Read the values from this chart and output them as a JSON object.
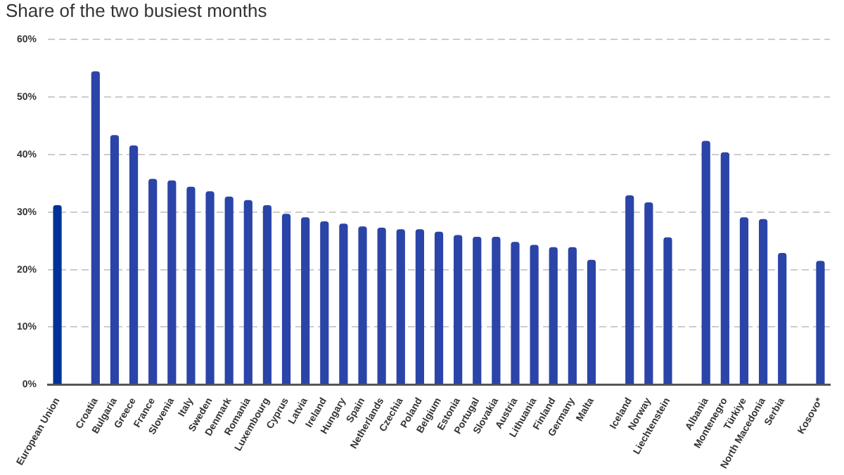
{
  "chart_data": {
    "type": "bar",
    "title": "Share of the two busiest months",
    "categories": [
      "European Union",
      null,
      "Croatia",
      "Bulgaria",
      "Greece",
      "France",
      "Slovenia",
      "Italy",
      "Sweden",
      "Denmark",
      "Romania",
      "Luxembourg",
      "Cyprus",
      "Latvia",
      "Ireland",
      "Hungary",
      "Spain",
      "Netherlands",
      "Czechia",
      "Poland",
      "Belgium",
      "Estonia",
      "Portugal",
      "Slovakia",
      "Austria",
      "Lithuania",
      "Finland",
      "Germany",
      "Malta",
      null,
      "Iceland",
      "Norway",
      "Liechtenstein",
      null,
      "Albania",
      "Montenegro",
      "Türkiye",
      "North Macedonia",
      "Serbia",
      null,
      "Kosovo*"
    ],
    "values": [
      31.2,
      null,
      54.5,
      43.4,
      41.6,
      35.8,
      35.5,
      34.4,
      33.6,
      32.7,
      32.1,
      31.2,
      29.7,
      29.1,
      28.4,
      28.0,
      27.5,
      27.3,
      27.0,
      27.0,
      26.6,
      26.0,
      25.7,
      25.7,
      24.8,
      24.3,
      23.9,
      23.9,
      21.7,
      null,
      32.9,
      31.7,
      25.6,
      null,
      42.4,
      40.4,
      29.1,
      28.8,
      22.9,
      null,
      21.5
    ],
    "colors": [
      "#003399",
      "#2a44a8",
      "#2a44a8",
      "#2a44a8",
      "#2a44a8",
      "#2a44a8",
      "#2a44a8",
      "#2a44a8",
      "#2a44a8",
      "#2a44a8",
      "#2a44a8",
      "#2a44a8",
      "#2a44a8",
      "#2a44a8",
      "#2a44a8",
      "#2a44a8",
      "#2a44a8",
      "#2a44a8",
      "#2a44a8",
      "#2a44a8",
      "#2a44a8",
      "#2a44a8",
      "#2a44a8",
      "#2a44a8",
      "#2a44a8",
      "#2a44a8",
      "#2a44a8",
      "#2a44a8",
      "#2a44a8",
      "#2a44a8",
      "#2a44a8",
      "#2a44a8",
      "#2a44a8",
      "#2a44a8",
      "#2a44a8",
      "#2a44a8",
      "#2a44a8",
      "#2a44a8",
      "#2a44a8",
      "#2a44a8",
      "#2a44a8"
    ],
    "ylim": [
      0,
      60
    ],
    "yticks": [
      {
        "value": 0,
        "label": "0%"
      },
      {
        "value": 10,
        "label": "10%"
      },
      {
        "value": 20,
        "label": "20%"
      },
      {
        "value": 30,
        "label": "30%"
      },
      {
        "value": 40,
        "label": "40%"
      },
      {
        "value": 50,
        "label": "50%"
      },
      {
        "value": 60,
        "label": "60%"
      }
    ],
    "grid": "y"
  }
}
